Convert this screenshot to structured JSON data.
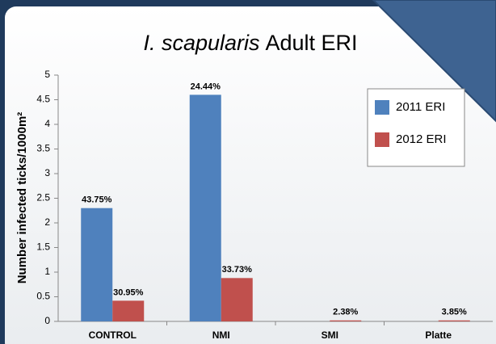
{
  "chart_data": {
    "type": "bar",
    "title_italic": "I. scapularis",
    "title": "Adult ERI",
    "y_label": "Number infected ticks/1000m²",
    "categories": [
      "CONTROL",
      "NMI",
      "SMI",
      "Platte"
    ],
    "series": [
      {
        "name": "2011 ERI",
        "color": "#4f81bd",
        "values": [
          2.3,
          4.6,
          0,
          0
        ],
        "annotations": [
          "43.75%",
          "24.44%",
          null,
          null
        ]
      },
      {
        "name": "2012 ERI",
        "color": "#c0504d",
        "values": [
          0.42,
          0.88,
          0.02,
          0.02
        ],
        "annotations": [
          "30.95%",
          "33.73%",
          "2.38%",
          "3.85%"
        ]
      }
    ],
    "ylim": [
      0,
      5
    ],
    "yticks": [
      0,
      0.5,
      1,
      1.5,
      2,
      2.5,
      3,
      3.5,
      4,
      4.5,
      5
    ],
    "legend": "upper right"
  }
}
